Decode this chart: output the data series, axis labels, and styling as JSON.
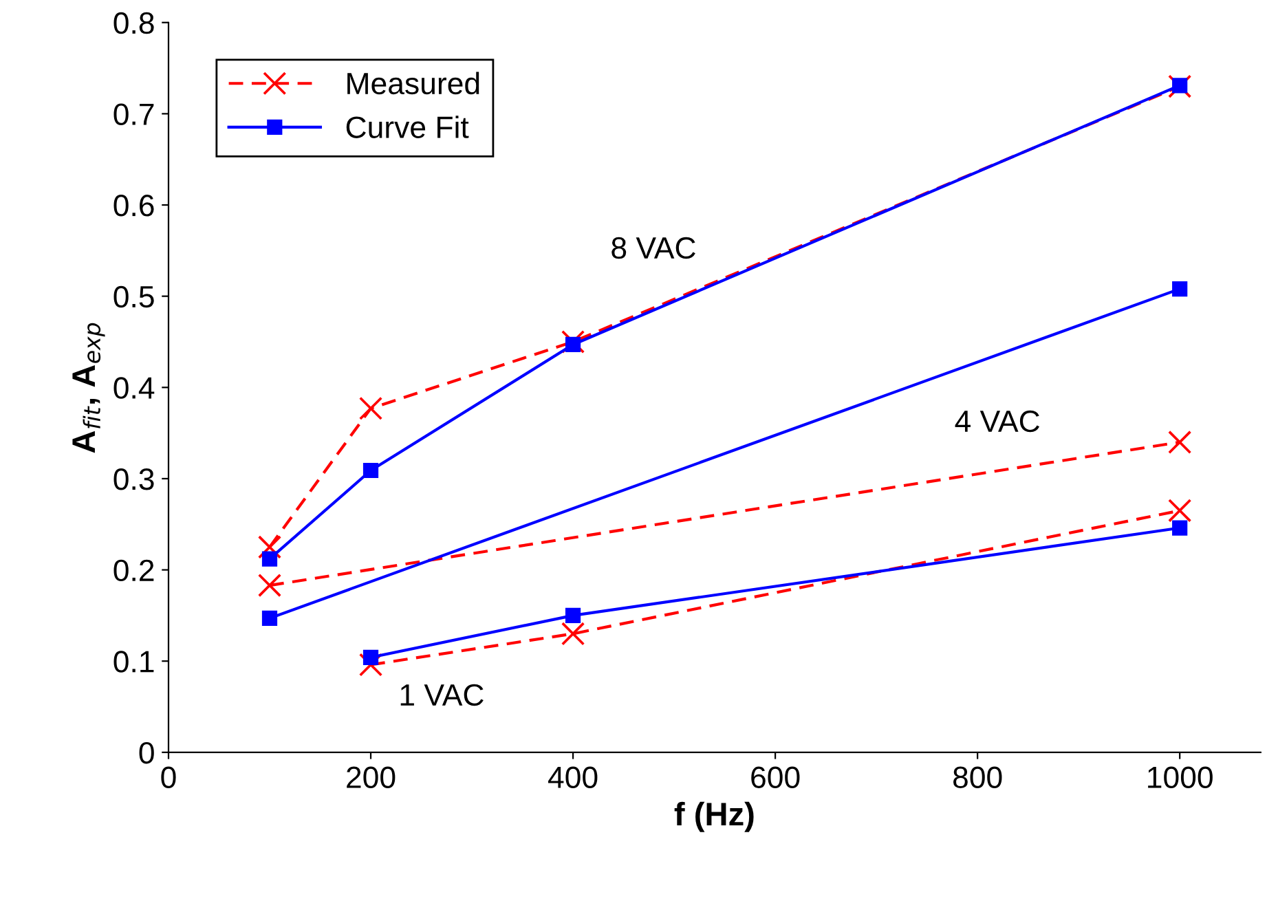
{
  "chart_data": {
    "type": "line",
    "xlabel": "f (Hz)",
    "ylabel": "A$_{fit}$, A$_{exp}$",
    "xlim": [
      0,
      1080
    ],
    "xticks": [
      0,
      200,
      400,
      600,
      800,
      1000
    ],
    "ylim": [
      0,
      0.8
    ],
    "yticks": [
      0,
      0.1,
      0.2,
      0.3,
      0.4,
      0.5,
      0.6,
      0.7,
      0.8
    ],
    "grid": false,
    "legend": "top left",
    "series": [
      {
        "name": "Measured",
        "color": "#ff0000",
        "marker": "cross",
        "line_style": "dashed",
        "x": [
          100,
          200,
          400,
          1000
        ],
        "values": [
          0.225,
          0.377,
          0.45,
          0.73
        ]
      },
      {
        "name": "Curve Fit",
        "color": "#0000ff",
        "marker": "square",
        "line_style": "solid",
        "x": [
          100,
          200,
          400,
          1000
        ],
        "values": [
          0.212,
          0.309,
          0.447,
          0.731
        ]
      },
      {
        "color": "#ff0000",
        "marker": "cross",
        "line_style": "dashed",
        "x": [
          100,
          1000
        ],
        "values": [
          0.183,
          0.34
        ]
      },
      {
        "color": "#0000ff",
        "marker": "square",
        "line_style": "solid",
        "x": [
          100,
          1000
        ],
        "values": [
          0.147,
          0.508
        ]
      },
      {
        "color": "#ff0000",
        "marker": "cross",
        "line_style": "dashed",
        "x": [
          200,
          400,
          1000
        ],
        "values": [
          0.096,
          0.13,
          0.265
        ]
      },
      {
        "color": "#0000ff",
        "marker": "square",
        "line_style": "solid",
        "x": [
          200,
          400,
          1000
        ],
        "values": [
          0.104,
          0.15,
          0.246
        ]
      }
    ],
    "annotations": [
      "8 VAC",
      "4 VAC",
      "1 VAC"
    ]
  }
}
